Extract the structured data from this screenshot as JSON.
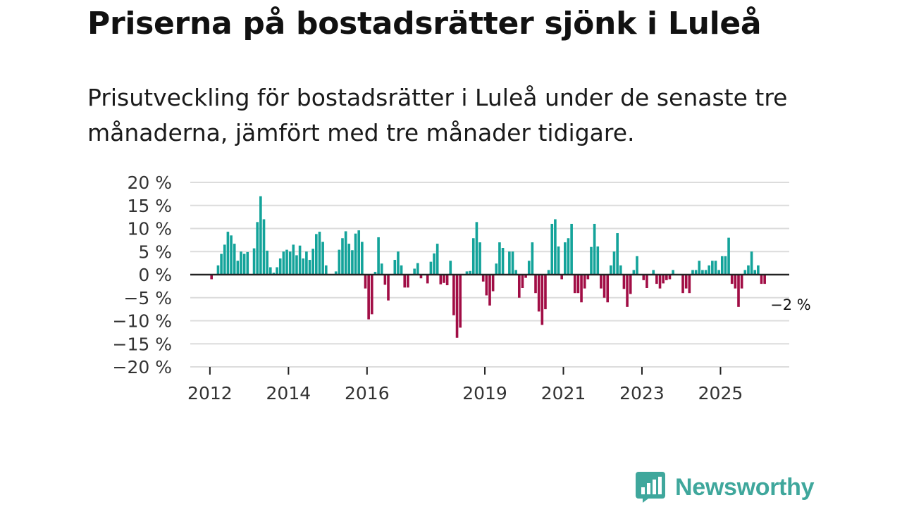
{
  "title": "Priserna på bostadsrätter sjönk i Luleå",
  "subtitle": "Prisutveckling för bostadsrätter i Luleå under de senaste tre månaderna, jämfört med tre månader tidigare.",
  "brand": {
    "name": "Newsworthy",
    "color": "#3fa79c"
  },
  "colors": {
    "positive": "#13a39a",
    "negative": "#a10d45",
    "grid": "#dcdcdc",
    "axis": "#222222"
  },
  "chart_data": {
    "type": "bar",
    "title": "Priserna på bostadsrätter sjönk i Luleå",
    "xlabel": "",
    "ylabel": "",
    "ylim": [
      -20,
      20
    ],
    "xlim": [
      2011.5,
      2026.75
    ],
    "grid": true,
    "y_ticks": [
      20,
      15,
      10,
      5,
      0,
      -5,
      -10,
      -15,
      -20
    ],
    "y_tick_labels": [
      "20 %",
      "15 %",
      "10 %",
      "5 %",
      "0 %",
      "−5 %",
      "−10 %",
      "−15 %",
      "−20 %"
    ],
    "x_ticks": [
      2012,
      2014,
      2016,
      2019,
      2021,
      2023,
      2025
    ],
    "x_tick_labels": [
      "2012",
      "2014",
      "2016",
      "2019",
      "2021",
      "2023",
      "2025"
    ],
    "start": "2012-01",
    "frequency": "monthly",
    "unit": "%",
    "values": [
      -1,
      0,
      2,
      4.5,
      6.5,
      9.3,
      8.5,
      6.7,
      3,
      5,
      4.5,
      4.9,
      0,
      5.7,
      11.4,
      17,
      12,
      5.2,
      1.6,
      0.4,
      1.6,
      3.5,
      5,
      5.4,
      5,
      6.5,
      4.2,
      6.3,
      3.5,
      5,
      3.2,
      5.6,
      8.8,
      9.3,
      7.1,
      2,
      0,
      0,
      0.7,
      5.4,
      7.9,
      9.4,
      6.7,
      5.3,
      8.9,
      9.6,
      7.1,
      -3,
      -9.7,
      -8.6,
      0.6,
      8.1,
      2.4,
      -2.2,
      -5.6,
      0,
      3.2,
      5,
      2,
      -2.8,
      -2.8,
      0,
      1.3,
      2.5,
      -0.8,
      0,
      -1.9,
      2.8,
      4.6,
      6.7,
      -2.1,
      -1.8,
      -2.3,
      3,
      -8.8,
      -13.7,
      -11.5,
      0,
      0.7,
      0.8,
      7.9,
      11.4,
      7,
      -1.5,
      -4.5,
      -6.7,
      -3.6,
      2.4,
      7,
      5.8,
      0,
      5,
      5,
      1,
      -5,
      -2.9,
      -0.7,
      3,
      7,
      -4,
      -8,
      -10.9,
      -7.5,
      1,
      11,
      12,
      6.1,
      -1,
      7,
      7.9,
      11,
      -4,
      -4,
      -6,
      -3,
      -1,
      6,
      11,
      6.1,
      -3,
      -5,
      -6,
      2,
      5,
      9,
      2,
      -3.1,
      -7,
      -4.2,
      1,
      4,
      0,
      -1.2,
      -2.9,
      0,
      1,
      -2,
      -3,
      -1.9,
      -1.2,
      -1,
      1,
      0,
      0,
      -4,
      -3,
      -4,
      1,
      1,
      3,
      1,
      1,
      2,
      3,
      3,
      1,
      4,
      4,
      8,
      -2,
      -3,
      -7,
      -3,
      1,
      2,
      5,
      1,
      2,
      -2,
      -2
    ],
    "last_value_label": "−2 %"
  }
}
